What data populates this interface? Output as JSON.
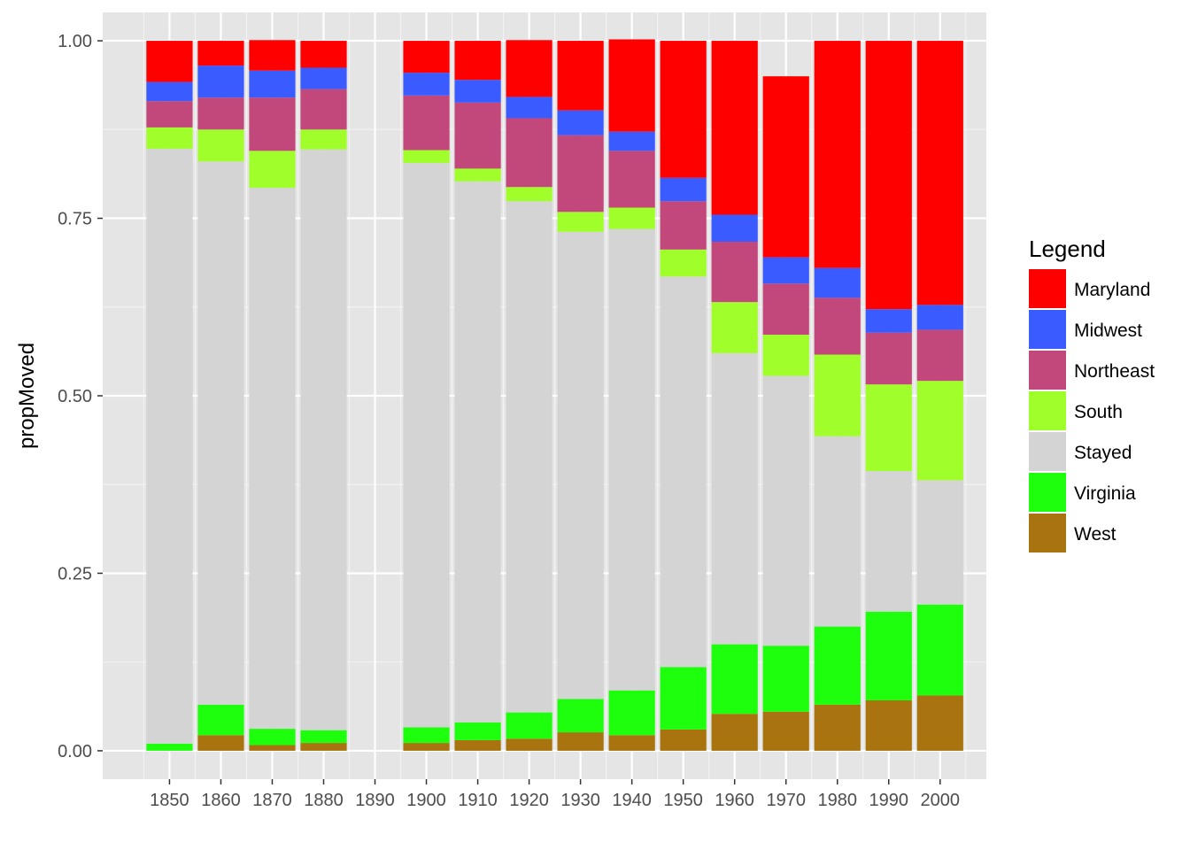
{
  "chart_data": {
    "type": "bar",
    "stacked": true,
    "ylabel": "propMoved",
    "xlabel": "",
    "ylim": [
      -0.04,
      1.04
    ],
    "yticks": [
      0.0,
      0.25,
      0.5,
      0.75,
      1.0
    ],
    "ytick_labels": [
      "0.00",
      "0.25",
      "0.50",
      "0.75",
      "1.00"
    ],
    "categories": [
      "1850",
      "1860",
      "1870",
      "1880",
      "1890",
      "1900",
      "1910",
      "1920",
      "1930",
      "1940",
      "1950",
      "1960",
      "1970",
      "1980",
      "1990",
      "2000"
    ],
    "grid": true,
    "panel_background": "#E5E5E5",
    "legend": {
      "title": "Legend",
      "position": "right"
    },
    "stack_order_bottom_to_top": [
      "West",
      "Virginia",
      "Stayed",
      "South",
      "Northeast",
      "Midwest",
      "Maryland"
    ],
    "series": [
      {
        "name": "Maryland",
        "color": "#FF0000",
        "values": [
          0.058,
          0.035,
          0.043,
          0.038,
          null,
          0.045,
          0.055,
          0.08,
          0.098,
          0.13,
          0.193,
          0.245,
          0.255,
          0.32,
          0.378,
          0.372
        ]
      },
      {
        "name": "Midwest",
        "color": "#3A5BFF",
        "values": [
          0.027,
          0.045,
          0.038,
          0.03,
          null,
          0.032,
          0.032,
          0.03,
          0.035,
          0.027,
          0.033,
          0.038,
          0.037,
          0.042,
          0.033,
          0.035
        ]
      },
      {
        "name": "Northeast",
        "color": "#C2477A",
        "values": [
          0.037,
          0.045,
          0.075,
          0.057,
          null,
          0.077,
          0.093,
          0.097,
          0.108,
          0.08,
          0.068,
          0.085,
          0.072,
          0.08,
          0.073,
          0.072
        ]
      },
      {
        "name": "South",
        "color": "#A0FF2A",
        "values": [
          0.03,
          0.045,
          0.052,
          0.028,
          null,
          0.018,
          0.018,
          0.02,
          0.028,
          0.03,
          0.038,
          0.072,
          0.058,
          0.115,
          0.122,
          0.14
        ]
      },
      {
        "name": "Stayed",
        "color": "#D4D4D4",
        "values": [
          0.838,
          0.765,
          0.762,
          0.818,
          null,
          0.795,
          0.762,
          0.72,
          0.658,
          0.65,
          0.55,
          0.41,
          0.38,
          0.268,
          0.198,
          0.175
        ]
      },
      {
        "name": "Virginia",
        "color": "#1EFF0E",
        "values": [
          0.01,
          0.043,
          0.023,
          0.018,
          null,
          0.022,
          0.025,
          0.037,
          0.047,
          0.063,
          0.088,
          0.098,
          0.093,
          0.11,
          0.125,
          0.128
        ]
      },
      {
        "name": "West",
        "color": "#A97410",
        "values": [
          0.0,
          0.022,
          0.008,
          0.011,
          null,
          0.011,
          0.015,
          0.017,
          0.026,
          0.022,
          0.03,
          0.052,
          0.055,
          0.065,
          0.071,
          0.078
        ]
      }
    ]
  }
}
